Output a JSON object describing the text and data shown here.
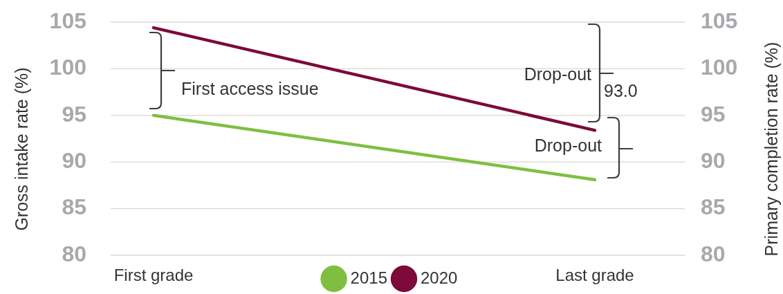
{
  "chart_data": {
    "type": "line",
    "categories": [
      "First grade",
      "Last grade"
    ],
    "series": [
      {
        "name": "2015",
        "color": "#7ebf41",
        "values": [
          95.0,
          88.1
        ]
      },
      {
        "name": "2020",
        "color": "#7d0a3b",
        "values": [
          104.4,
          93.4
        ]
      }
    ],
    "ylabel": "Gross intake rate (%)",
    "y2label": "Primary completion rate (%)",
    "ylim": [
      80,
      105
    ],
    "yticks": [
      80,
      85,
      90,
      95,
      100,
      105
    ],
    "y2lim": [
      80,
      105
    ],
    "y2ticks": [
      80,
      85,
      90,
      95,
      100,
      105
    ],
    "grid": "y",
    "legend": "bottom",
    "annotations": [
      "First access issue",
      "Drop-out",
      "93.0",
      "Drop-out"
    ]
  }
}
